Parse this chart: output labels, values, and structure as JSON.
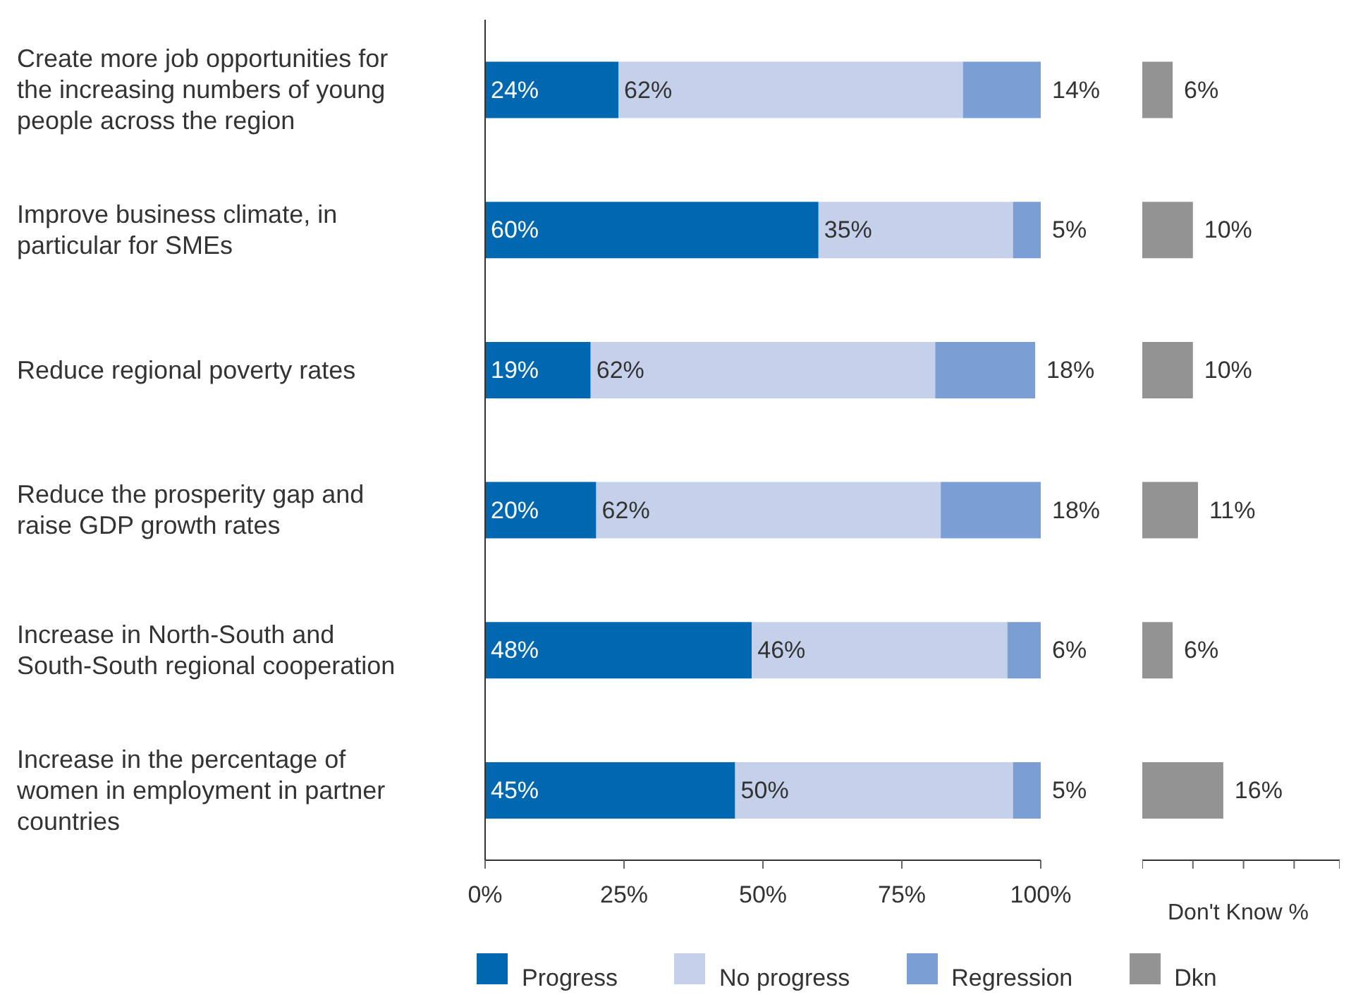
{
  "chart_data": [
    {
      "type": "bar",
      "orientation": "horizontal",
      "stacked": true,
      "categories": [
        "Create more job opportunities for the increasing numbers of young people across the region",
        "Improve business climate, in particular for SMEs",
        "Reduce regional poverty rates",
        "Reduce the prosperity gap and raise GDP growth rates",
        "Increase in North-South and South-South regional cooperation",
        "Increase in the percentage of women in employment in partner countries"
      ],
      "series": [
        {
          "name": "Progress",
          "color": "#0067b1",
          "values": [
            24,
            60,
            19,
            20,
            48,
            45
          ],
          "value_labels": [
            "24%",
            "60%",
            "19%",
            "20%",
            "48%",
            "45%"
          ]
        },
        {
          "name": "No progress",
          "color": "#c5d1ea",
          "values": [
            62,
            35,
            62,
            62,
            46,
            50
          ],
          "value_labels": [
            "62%",
            "35%",
            "62%",
            "62%",
            "46%",
            "50%"
          ]
        },
        {
          "name": "Regression",
          "color": "#7b9fd4",
          "values": [
            14,
            5,
            18,
            18,
            6,
            5
          ],
          "value_labels": [
            "14%",
            "5%",
            "18%",
            "18%",
            "6%",
            "5%"
          ]
        }
      ],
      "xlim": [
        0,
        100
      ],
      "xticks": [
        {
          "value": 0,
          "label": "0%"
        },
        {
          "value": 25,
          "label": "25%"
        },
        {
          "value": 50,
          "label": "50%"
        },
        {
          "value": 75,
          "label": "75%"
        },
        {
          "value": 100,
          "label": "100%"
        }
      ],
      "grid": false,
      "legend": "bottom"
    },
    {
      "type": "bar",
      "orientation": "horizontal",
      "xlabel": "Don't Know %",
      "categories": [
        null,
        null,
        null,
        null,
        null,
        null
      ],
      "series": [
        {
          "name": "Dkn",
          "color": "#939393",
          "values": [
            6,
            10,
            10,
            11,
            6,
            16
          ],
          "value_labels": [
            "6%",
            "10%",
            "10%",
            "11%",
            "6%",
            "16%"
          ]
        }
      ],
      "xlim": [
        0,
        39
      ],
      "grid": false,
      "legend": "bottom"
    }
  ]
}
